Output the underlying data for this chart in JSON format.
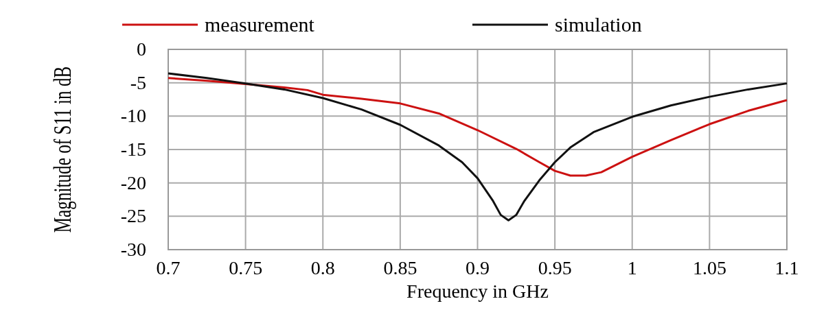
{
  "chart_data": {
    "type": "line",
    "xlabel": "Frequency in GHz",
    "ylabel": "Magnitude of S11 in dB",
    "xlim": [
      0.7,
      1.1
    ],
    "ylim": [
      -30,
      0
    ],
    "xticks": [
      0.7,
      0.75,
      0.8,
      0.85,
      0.9,
      0.95,
      1,
      1.05,
      1.1
    ],
    "yticks": [
      0,
      -5,
      -10,
      -15,
      -20,
      -25,
      -30
    ],
    "grid": true,
    "legend": "top",
    "line_style": "solid",
    "marker": "none",
    "series": [
      {
        "name": "measurement",
        "color": "#cc1111",
        "x": [
          0.7,
          0.725,
          0.75,
          0.775,
          0.79,
          0.8,
          0.825,
          0.85,
          0.875,
          0.9,
          0.925,
          0.94,
          0.95,
          0.96,
          0.97,
          0.98,
          1.0,
          1.025,
          1.05,
          1.075,
          1.1
        ],
        "values": [
          -4.3,
          -4.7,
          -5.2,
          -5.7,
          -6.1,
          -6.8,
          -7.4,
          -8.1,
          -9.6,
          -12.1,
          -14.9,
          -16.9,
          -18.2,
          -18.9,
          -18.9,
          -18.4,
          -16.1,
          -13.6,
          -11.2,
          -9.2,
          -7.6
        ]
      },
      {
        "name": "simulation",
        "color": "#111111",
        "x": [
          0.7,
          0.725,
          0.75,
          0.775,
          0.8,
          0.825,
          0.85,
          0.875,
          0.89,
          0.9,
          0.91,
          0.915,
          0.92,
          0.925,
          0.93,
          0.94,
          0.95,
          0.96,
          0.975,
          1.0,
          1.025,
          1.05,
          1.075,
          1.1
        ],
        "values": [
          -3.6,
          -4.3,
          -5.1,
          -6,
          -7.3,
          -9,
          -11.3,
          -14.4,
          -16.9,
          -19.3,
          -22.7,
          -24.8,
          -25.6,
          -24.8,
          -22.8,
          -19.6,
          -16.9,
          -14.7,
          -12.4,
          -10.1,
          -8.4,
          -7.1,
          -6,
          -5.1
        ]
      }
    ]
  }
}
